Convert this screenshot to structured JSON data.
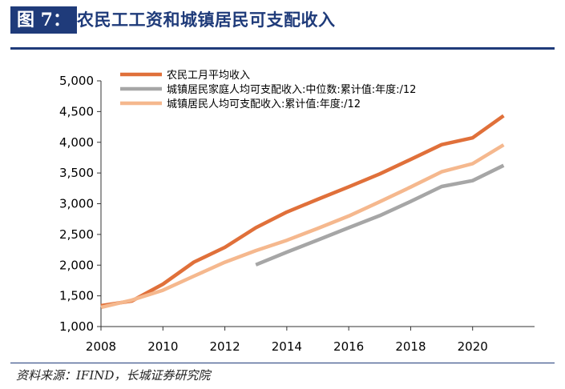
{
  "header": {
    "tag": "图 7：",
    "title": "农民工工资和城镇居民可支配收入"
  },
  "source": "资料来源：IFIND，长城证券研究院",
  "chart_data": {
    "type": "line",
    "title": "",
    "xlabel": "",
    "ylabel": "",
    "xlim": [
      2008,
      2022
    ],
    "ylim": [
      1000,
      5000
    ],
    "x_ticks": [
      2008,
      2010,
      2012,
      2014,
      2016,
      2018,
      2020
    ],
    "y_ticks": [
      1000,
      1500,
      2000,
      2500,
      3000,
      3500,
      4000,
      4500,
      5000
    ],
    "y_tick_labels": [
      "1,000",
      "1,500",
      "2,000",
      "2,500",
      "3,000",
      "3,500",
      "4,000",
      "4,500",
      "5,000"
    ],
    "grid": false,
    "legend_position": "top-left",
    "series": [
      {
        "name": "农民工月平均收入",
        "color": "#e0703a",
        "points": [
          [
            2008,
            1340
          ],
          [
            2009,
            1417
          ],
          [
            2010,
            1690
          ],
          [
            2011,
            2049
          ],
          [
            2012,
            2290
          ],
          [
            2013,
            2609
          ],
          [
            2014,
            2864
          ],
          [
            2015,
            3072
          ],
          [
            2016,
            3275
          ],
          [
            2017,
            3485
          ],
          [
            2018,
            3721
          ],
          [
            2019,
            3962
          ],
          [
            2020,
            4072
          ],
          [
            2021,
            4432
          ]
        ]
      },
      {
        "name": "城镇居民家庭人均可支配收入:中位数:累计值:年度:/12",
        "color": "#a6a6a6",
        "points": [
          [
            2013,
            2006
          ],
          [
            2014,
            2212
          ],
          [
            2015,
            2408
          ],
          [
            2016,
            2609
          ],
          [
            2017,
            2806
          ],
          [
            2018,
            3036
          ],
          [
            2019,
            3280
          ],
          [
            2020,
            3375
          ],
          [
            2021,
            3623
          ]
        ]
      },
      {
        "name": "城镇居民人均可支配收入:累计值:年度:/12",
        "color": "#f5b88e",
        "points": [
          [
            2008,
            1313
          ],
          [
            2009,
            1431
          ],
          [
            2010,
            1592
          ],
          [
            2011,
            1821
          ],
          [
            2012,
            2047
          ],
          [
            2013,
            2237
          ],
          [
            2014,
            2404
          ],
          [
            2015,
            2597
          ],
          [
            2016,
            2800
          ],
          [
            2017,
            3031
          ],
          [
            2018,
            3271
          ],
          [
            2019,
            3520
          ],
          [
            2020,
            3652
          ],
          [
            2021,
            3958
          ]
        ]
      }
    ]
  }
}
